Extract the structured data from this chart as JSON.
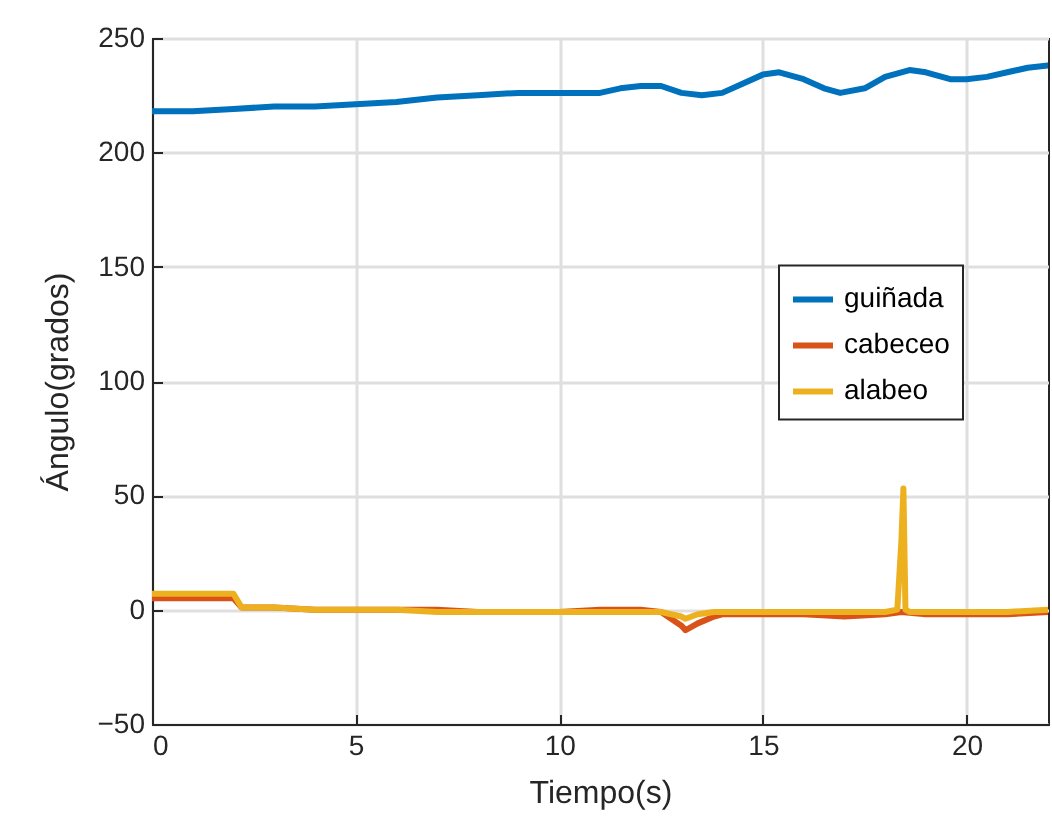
{
  "chart_data": {
    "type": "line",
    "xlabel": "Tiempo(s)",
    "ylabel": "Ángulo(grados)",
    "xlim": [
      0,
      22
    ],
    "xticks": [
      0,
      5,
      10,
      15,
      20
    ],
    "ylim": [
      -50,
      250
    ],
    "yticks": [
      -50,
      0,
      50,
      100,
      150,
      200,
      250
    ],
    "grid": true,
    "legend": "right",
    "line_style": "solid",
    "marker": "none",
    "series": [
      {
        "name": "guiñada",
        "color": "#0072bd",
        "x": [
          0,
          1,
          2,
          3,
          4,
          5,
          6,
          7,
          8,
          9,
          10,
          11,
          11.5,
          12,
          12.5,
          13,
          13.5,
          14,
          14.5,
          15,
          15.4,
          16,
          16.5,
          16.9,
          17.5,
          18,
          18.6,
          19,
          19.6,
          20,
          20.5,
          21,
          21.5,
          22
        ],
        "values": [
          218,
          218,
          219,
          220,
          220,
          221,
          222,
          224,
          225,
          226,
          226,
          226,
          228,
          229,
          229,
          226,
          225,
          226,
          230,
          234,
          235,
          232,
          228,
          226,
          228,
          233,
          236,
          235,
          232,
          232,
          233,
          235,
          237,
          238
        ]
      },
      {
        "name": "cabeceo",
        "color": "#d95319",
        "x": [
          0,
          1,
          2,
          2.2,
          3,
          4,
          5,
          6,
          7,
          8,
          9,
          10,
          11,
          12,
          12.5,
          13,
          13.1,
          13.4,
          13.8,
          14,
          15,
          16,
          17,
          18,
          18.4,
          19,
          20,
          21,
          22
        ],
        "values": [
          5,
          5,
          5,
          1,
          1,
          0,
          0,
          0,
          0,
          -1,
          -1,
          -1,
          0,
          0,
          -1,
          -7,
          -9,
          -6,
          -3,
          -2,
          -2,
          -2,
          -3,
          -2,
          -1,
          -2,
          -2,
          -2,
          -1
        ]
      },
      {
        "name": "alabeo",
        "color": "#edb120",
        "x": [
          0,
          1,
          2,
          2.2,
          3,
          4,
          5,
          6,
          7,
          8,
          9,
          10,
          11,
          12,
          12.5,
          13,
          13.1,
          13.4,
          13.8,
          14,
          15,
          16,
          17,
          18,
          18.3,
          18.4,
          18.45,
          18.5,
          18.6,
          19,
          20,
          21,
          22
        ],
        "values": [
          7,
          7,
          7,
          1,
          1,
          0,
          0,
          0,
          -1,
          -1,
          -1,
          -1,
          -1,
          -1,
          -1,
          -3,
          -4,
          -2,
          -1,
          -1,
          -1,
          -1,
          -1,
          -1,
          0,
          30,
          53,
          0,
          -1,
          -1,
          -1,
          -1,
          0
        ]
      }
    ]
  }
}
